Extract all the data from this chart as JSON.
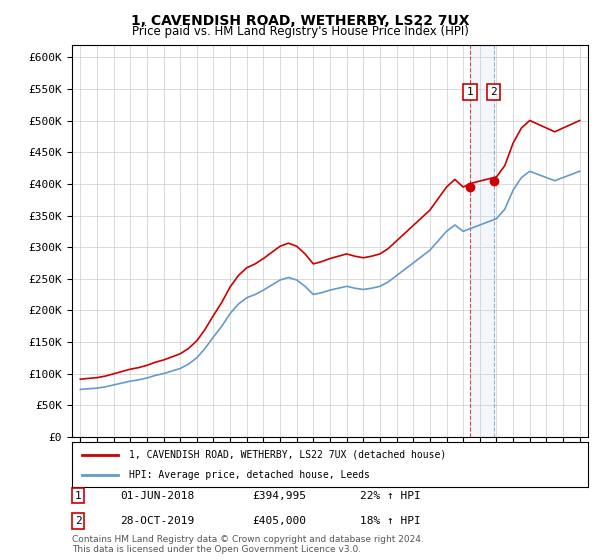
{
  "title1": "1, CAVENDISH ROAD, WETHERBY, LS22 7UX",
  "title2": "Price paid vs. HM Land Registry's House Price Index (HPI)",
  "ylabel_ticks": [
    "£0",
    "£50K",
    "£100K",
    "£150K",
    "£200K",
    "£250K",
    "£300K",
    "£350K",
    "£400K",
    "£450K",
    "£500K",
    "£550K",
    "£600K"
  ],
  "ylim": [
    0,
    620000
  ],
  "yticks": [
    0,
    50000,
    100000,
    150000,
    200000,
    250000,
    300000,
    350000,
    400000,
    450000,
    500000,
    550000,
    600000
  ],
  "legend_label1": "1, CAVENDISH ROAD, WETHERBY, LS22 7UX (detached house)",
  "legend_label2": "HPI: Average price, detached house, Leeds",
  "marker1_date": 2018.42,
  "marker1_price": 394995,
  "marker1_label": "1",
  "marker2_date": 2019.83,
  "marker2_price": 405000,
  "marker2_label": "2",
  "sale1_text": "01-JUN-2018",
  "sale1_price": "£394,995",
  "sale1_hpi": "22% ↑ HPI",
  "sale2_text": "28-OCT-2019",
  "sale2_price": "£405,000",
  "sale2_hpi": "18% ↑ HPI",
  "footnote": "Contains HM Land Registry data © Crown copyright and database right 2024.\nThis data is licensed under the Open Government Licence v3.0.",
  "line1_color": "#cc0000",
  "line2_color": "#6699cc",
  "background_color": "#ffffff",
  "grid_color": "#cccccc"
}
